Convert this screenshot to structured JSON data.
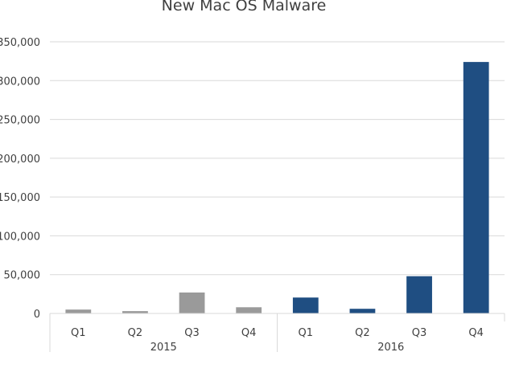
{
  "chart_data": {
    "type": "bar",
    "title": "New Mac OS Malware",
    "xlabel": "",
    "ylabel": "",
    "ylim": [
      0,
      350000
    ],
    "yticks": [
      0,
      50000,
      100000,
      150000,
      200000,
      250000,
      300000,
      350000
    ],
    "ytick_labels": [
      "0",
      "50,000",
      "100,000",
      "150,000",
      "200,000",
      "250,000",
      "300,000",
      "350,000"
    ],
    "grid": true,
    "legend": "none",
    "categories": [
      "Q1",
      "Q2",
      "Q3",
      "Q4",
      "Q1",
      "Q2",
      "Q3",
      "Q4"
    ],
    "groups": [
      {
        "label": "2015",
        "start": 0,
        "end": 3,
        "color": "#9a9a9a"
      },
      {
        "label": "2016",
        "start": 4,
        "end": 7,
        "color": "#1f4e82"
      }
    ],
    "values": [
      5000,
      3000,
      27000,
      8000,
      20500,
      6000,
      48000,
      324000
    ],
    "colors": [
      "#9a9a9a",
      "#9a9a9a",
      "#9a9a9a",
      "#9a9a9a",
      "#1f4e82",
      "#1f4e82",
      "#1f4e82",
      "#1f4e82"
    ]
  }
}
